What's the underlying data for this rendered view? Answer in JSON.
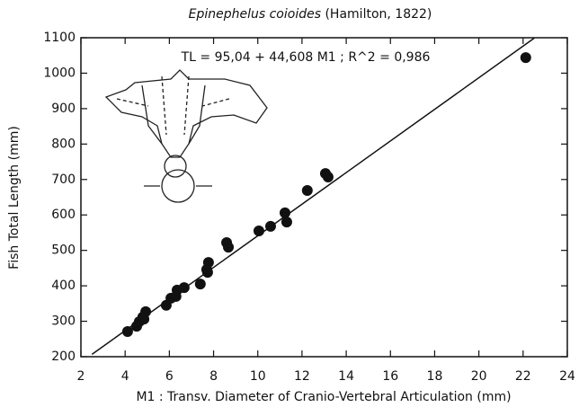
{
  "chart_data": {
    "type": "scatter",
    "title": "Epinephelus coioides",
    "title_author": "(Hamilton, 1822)",
    "annotation": "TL = 95,04 + 44,608 M1 ;  R^2 = 0,986",
    "x_label": "M1 : Transv. Diameter of Cranio-Vertebral Articulation (mm)",
    "y_label": "Fish Total Length (mm)",
    "xlim": [
      2,
      24
    ],
    "xticks": [
      2,
      4,
      6,
      8,
      10,
      12,
      14,
      16,
      18,
      20,
      22,
      24
    ],
    "ylim": [
      200,
      1100
    ],
    "yticks": [
      200,
      300,
      400,
      500,
      600,
      700,
      800,
      900,
      1000,
      1100
    ],
    "color": "#111111",
    "x": [
      4.11,
      4.52,
      4.64,
      4.85,
      4.93,
      4.8,
      5.86,
      6.07,
      6.3,
      6.35,
      6.67,
      7.4,
      7.69,
      7.77,
      7.73,
      8.59,
      8.67,
      10.05,
      10.58,
      11.23,
      11.31,
      12.24,
      13.06,
      13.18,
      22.12
    ],
    "values": [
      271,
      286,
      299,
      306,
      327,
      312,
      345,
      365,
      370,
      388,
      395,
      405,
      446,
      466,
      438,
      522,
      509,
      555,
      568,
      606,
      580,
      669,
      717,
      707,
      1044
    ],
    "fit_line": {
      "x": [
        2.5,
        22.5
      ],
      "y": [
        206.6,
        1098.7
      ]
    }
  }
}
